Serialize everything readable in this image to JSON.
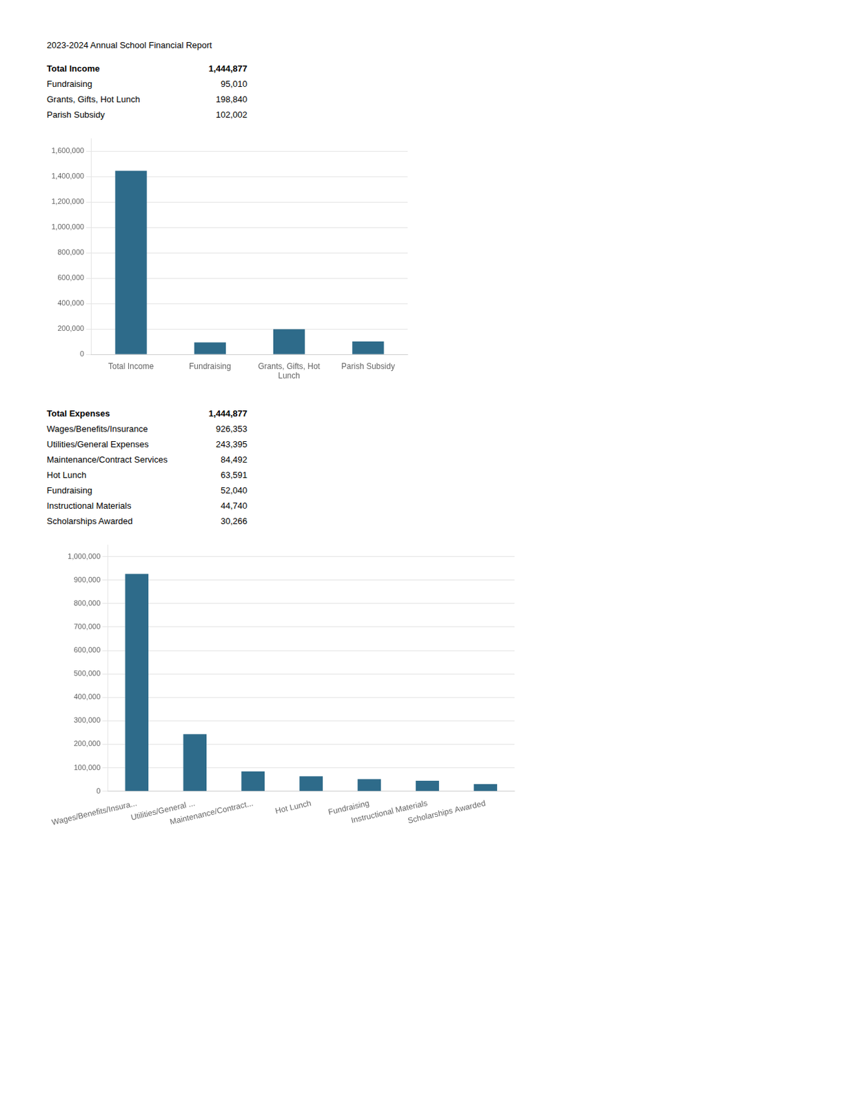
{
  "chart_data": [
    {
      "type": "bar",
      "title": "2023-2024 Annual School Financial Report",
      "annotations": [
        {
          "label": "Total Income",
          "value": "1,444,877"
        },
        {
          "label": "Fundraising",
          "value": "95,010"
        },
        {
          "label": "Grants, Gifts, Hot Lunch",
          "value": "198,840"
        },
        {
          "label": "Parish Subsidy",
          "value": "102,002"
        }
      ],
      "categories": [
        "Total Income",
        "Fundraising",
        "Grants, Gifts, Hot\nLunch",
        "Parish Subsidy"
      ],
      "values": [
        1444877,
        95010,
        198840,
        102002
      ],
      "color": "#2E6B8A",
      "ylim": [
        0,
        1700000
      ],
      "yticks": [
        0,
        {
          "value": 200000,
          "label": "200,000"
        },
        {
          "value": 400000,
          "label": "400,000"
        },
        {
          "value": 600000,
          "label": "600,000"
        },
        {
          "value": 800000,
          "label": "800,000"
        },
        {
          "value": 1000000,
          "label": "1,000,000"
        },
        {
          "value": 1200000,
          "label": "1,200,000"
        },
        {
          "value": 1400000,
          "label": "1,400,000"
        },
        {
          "value": 1600000,
          "label": "1,600,000"
        }
      ],
      "grid": true
    },
    {
      "type": "bar",
      "annotations": [
        {
          "label": "Total Expenses",
          "value": "1,444,877"
        },
        {
          "label": "Wages/Benefits/Insurance",
          "value": "926,353"
        },
        {
          "label": "Utilities/General Expenses",
          "value": "243,395"
        },
        {
          "label": "Maintenance/Contract Services",
          "value": "84,492"
        },
        {
          "label": "Hot Lunch",
          "value": "63,591"
        },
        {
          "label": "Fundraising",
          "value": "52,040"
        },
        {
          "label": "Instructional Materials",
          "value": "44,740"
        },
        {
          "label": "Scholarships Awarded",
          "value": "30,266"
        }
      ],
      "categories": [
        "Wages/Benefits/Insura...",
        "Utilities/General ...",
        "Maintenance/Contract...",
        "Hot Lunch",
        "Fundraising",
        "Instructional Materials",
        "Scholarships Awarded"
      ],
      "values": [
        926353,
        243395,
        84492,
        63591,
        52040,
        44740,
        30266
      ],
      "color": "#2E6B8A",
      "ylim": [
        0,
        1050000
      ],
      "yticks": [
        0,
        {
          "value": 100000,
          "label": "100,000"
        },
        {
          "value": 200000,
          "label": "200,000"
        },
        {
          "value": 300000,
          "label": "300,000"
        },
        {
          "value": 400000,
          "label": "400,000"
        },
        {
          "value": 500000,
          "label": "500,000"
        },
        {
          "value": 600000,
          "label": "600,000"
        },
        {
          "value": 700000,
          "label": "700,000"
        },
        {
          "value": 800000,
          "label": "800,000"
        },
        {
          "value": 900000,
          "label": "900,000"
        },
        {
          "value": 1000000,
          "label": "1,000,000"
        }
      ],
      "grid": true
    }
  ]
}
